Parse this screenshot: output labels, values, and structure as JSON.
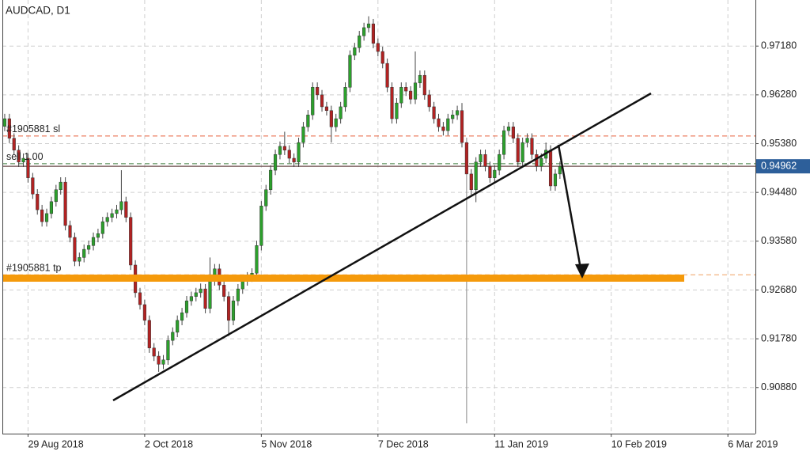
{
  "chart_data": {
    "type": "candlestick",
    "title": "AUDCAD, D1",
    "open": [
      0.957,
      0.9584,
      0.9548,
      0.9526,
      0.9504,
      0.9511,
      0.9475,
      0.9445,
      0.9416,
      0.9394,
      0.9409,
      0.9431,
      0.9453,
      0.9467,
      0.9387,
      0.9365,
      0.9321,
      0.9328,
      0.9343,
      0.935,
      0.9365,
      0.9372,
      0.9394,
      0.9402,
      0.9409,
      0.9416,
      0.9431,
      0.9402,
      0.9314,
      0.9263,
      0.9241,
      0.9212,
      0.9161,
      0.9146,
      0.9131,
      0.9139,
      0.9175,
      0.919,
      0.9212,
      0.9226,
      0.9248,
      0.9256,
      0.9263,
      0.927,
      0.9234,
      0.9285,
      0.9307,
      0.9277,
      0.9256,
      0.9212,
      0.9248,
      0.927,
      0.9285,
      0.9292,
      0.9299,
      0.935,
      0.9423,
      0.9453,
      0.9489,
      0.9518,
      0.9533,
      0.9526,
      0.9511,
      0.9504,
      0.954,
      0.9569,
      0.9591,
      0.9642,
      0.9628,
      0.9606,
      0.9599,
      0.9569,
      0.9584,
      0.9606,
      0.9642,
      0.9701,
      0.9715,
      0.9737,
      0.9752,
      0.9759,
      0.9723,
      0.9708,
      0.9686,
      0.9642,
      0.9584,
      0.9613,
      0.9642,
      0.9635,
      0.962,
      0.965,
      0.9664,
      0.9628,
      0.9606,
      0.9584,
      0.9569,
      0.9562,
      0.9584,
      0.9591,
      0.9599,
      0.954,
      0.9482,
      0.9453,
      0.9504,
      0.9518,
      0.9496,
      0.9475,
      0.9489,
      0.9518,
      0.9562,
      0.9569,
      0.9548,
      0.9504,
      0.954,
      0.9548,
      0.9518,
      0.9496,
      0.9511,
      0.9526,
      0.946,
      0.9482
    ],
    "high": [
      0.9593,
      0.9593,
      0.9557,
      0.9535,
      0.952,
      0.952,
      0.9484,
      0.9454,
      0.9425,
      0.9418,
      0.944,
      0.9462,
      0.9476,
      0.9476,
      0.9396,
      0.9374,
      0.9337,
      0.9352,
      0.9359,
      0.9374,
      0.9381,
      0.9403,
      0.9411,
      0.9418,
      0.9425,
      0.9489,
      0.944,
      0.9411,
      0.9323,
      0.9272,
      0.925,
      0.9221,
      0.917,
      0.9155,
      0.9148,
      0.9184,
      0.9199,
      0.9221,
      0.9235,
      0.9257,
      0.9265,
      0.9272,
      0.928,
      0.9279,
      0.9328,
      0.9316,
      0.9316,
      0.9286,
      0.9265,
      0.9257,
      0.9279,
      0.9294,
      0.9301,
      0.9308,
      0.9359,
      0.9432,
      0.9462,
      0.9498,
      0.9527,
      0.9542,
      0.956,
      0.9535,
      0.952,
      0.9549,
      0.9578,
      0.96,
      0.9651,
      0.9651,
      0.9637,
      0.9615,
      0.9608,
      0.9593,
      0.9615,
      0.9651,
      0.971,
      0.9724,
      0.9746,
      0.9761,
      0.9773,
      0.9768,
      0.9732,
      0.9717,
      0.9695,
      0.9651,
      0.9622,
      0.9651,
      0.9651,
      0.9644,
      0.9708,
      0.9673,
      0.9673,
      0.9637,
      0.9615,
      0.9593,
      0.9578,
      0.9593,
      0.96,
      0.9608,
      0.9613,
      0.9549,
      0.9491,
      0.9513,
      0.9527,
      0.9527,
      0.9505,
      0.9498,
      0.9527,
      0.9571,
      0.9578,
      0.9578,
      0.9557,
      0.9549,
      0.9557,
      0.9557,
      0.9527,
      0.952,
      0.954,
      0.9535,
      0.9491,
      0.9505
    ],
    "low": [
      0.9561,
      0.9539,
      0.9517,
      0.9495,
      0.9495,
      0.9466,
      0.9436,
      0.9407,
      0.9385,
      0.9385,
      0.94,
      0.9422,
      0.9444,
      0.9378,
      0.9356,
      0.9312,
      0.9312,
      0.9319,
      0.9334,
      0.9341,
      0.9356,
      0.9363,
      0.9385,
      0.9393,
      0.94,
      0.9407,
      0.9393,
      0.9305,
      0.9254,
      0.9232,
      0.9203,
      0.9152,
      0.9137,
      0.9117,
      0.9122,
      0.913,
      0.9166,
      0.9181,
      0.9203,
      0.9217,
      0.9239,
      0.9247,
      0.9254,
      0.9225,
      0.9225,
      0.9276,
      0.9268,
      0.9247,
      0.9183,
      0.9203,
      0.9239,
      0.9261,
      0.9276,
      0.9283,
      0.929,
      0.9341,
      0.9414,
      0.9444,
      0.948,
      0.9509,
      0.9517,
      0.9502,
      0.9495,
      0.9495,
      0.9531,
      0.956,
      0.9582,
      0.9619,
      0.9597,
      0.959,
      0.954,
      0.956,
      0.9575,
      0.9597,
      0.9633,
      0.9692,
      0.9706,
      0.9728,
      0.9743,
      0.9714,
      0.9699,
      0.9677,
      0.9633,
      0.9575,
      0.9575,
      0.9604,
      0.9626,
      0.9611,
      0.9611,
      0.9641,
      0.9619,
      0.9597,
      0.9575,
      0.956,
      0.9553,
      0.9553,
      0.9575,
      0.9582,
      0.9531,
      0.9022,
      0.9444,
      0.943,
      0.9495,
      0.9487,
      0.9466,
      0.9466,
      0.948,
      0.9509,
      0.9553,
      0.9539,
      0.9495,
      0.9495,
      0.9531,
      0.9509,
      0.9487,
      0.9487,
      0.9502,
      0.9451,
      0.9451,
      0.9473
    ],
    "close": [
      0.9584,
      0.9548,
      0.9526,
      0.9504,
      0.9511,
      0.9475,
      0.9445,
      0.9416,
      0.9394,
      0.9409,
      0.9431,
      0.9453,
      0.9467,
      0.9387,
      0.9365,
      0.9321,
      0.9328,
      0.9343,
      0.935,
      0.9365,
      0.9372,
      0.9394,
      0.9402,
      0.9409,
      0.9416,
      0.9431,
      0.9402,
      0.9314,
      0.9263,
      0.9241,
      0.9212,
      0.9161,
      0.9146,
      0.9131,
      0.9139,
      0.9175,
      0.919,
      0.9212,
      0.9226,
      0.9248,
      0.9256,
      0.9263,
      0.927,
      0.9234,
      0.9285,
      0.9307,
      0.9277,
      0.9256,
      0.9212,
      0.9248,
      0.927,
      0.9285,
      0.9292,
      0.9299,
      0.935,
      0.9423,
      0.9453,
      0.9489,
      0.9518,
      0.9533,
      0.9526,
      0.9511,
      0.9504,
      0.954,
      0.9569,
      0.9591,
      0.9642,
      0.9628,
      0.9606,
      0.9599,
      0.9569,
      0.9584,
      0.9606,
      0.9642,
      0.9701,
      0.9715,
      0.9737,
      0.9752,
      0.9759,
      0.9723,
      0.9708,
      0.9686,
      0.9642,
      0.9584,
      0.9613,
      0.9642,
      0.9635,
      0.962,
      0.965,
      0.9664,
      0.9628,
      0.9606,
      0.9584,
      0.9569,
      0.9562,
      0.9584,
      0.9591,
      0.9599,
      0.954,
      0.9482,
      0.9453,
      0.9504,
      0.9518,
      0.9496,
      0.9475,
      0.9489,
      0.9518,
      0.9562,
      0.9569,
      0.9548,
      0.9504,
      0.954,
      0.9548,
      0.9518,
      0.9496,
      0.9511,
      0.9526,
      0.946,
      0.9482,
      0.9496
    ],
    "bull_color": "#2ca02c",
    "bear_color": "#b22222",
    "xlim": [
      -0.5,
      160.9
    ],
    "xticks": [
      {
        "value": 5,
        "label": "29 Aug 2018"
      },
      {
        "value": 30,
        "label": "2 Oct 2018"
      },
      {
        "value": 55,
        "label": "5 Nov 2018"
      },
      {
        "value": 80,
        "label": "7 Dec 2018"
      },
      {
        "value": 105,
        "label": "11 Jan 2019"
      },
      {
        "value": 130,
        "label": "10 Feb 2019"
      },
      {
        "value": 155,
        "label": "6 Mar 2019"
      }
    ],
    "ylim": [
      0.9003,
      0.9803
    ],
    "yticks": [
      {
        "value": 0.9718,
        "label": "0.97180"
      },
      {
        "value": 0.9628,
        "label": "0.96280"
      },
      {
        "value": 0.9538,
        "label": "0.95380"
      },
      {
        "value": 0.9448,
        "label": "0.94480"
      },
      {
        "value": 0.9358,
        "label": "0.93580"
      },
      {
        "value": 0.9268,
        "label": "0.92680"
      },
      {
        "value": 0.9178,
        "label": "0.91780"
      },
      {
        "value": 0.9088,
        "label": "0.90880"
      }
    ],
    "grid": true,
    "levels": [
      {
        "name": "#1905881 sl",
        "value": 0.9552,
        "color": "#e8603c"
      },
      {
        "name": "sell 1.00",
        "value": 0.9501,
        "color": "#3a7a3a"
      },
      {
        "name": "#1905881 tp",
        "value": 0.9296,
        "color": "#f0a060"
      }
    ],
    "bid": {
      "value": 0.94962,
      "color": "#2d5f9a",
      "line_color": "#6b4a4a"
    }
  }
}
